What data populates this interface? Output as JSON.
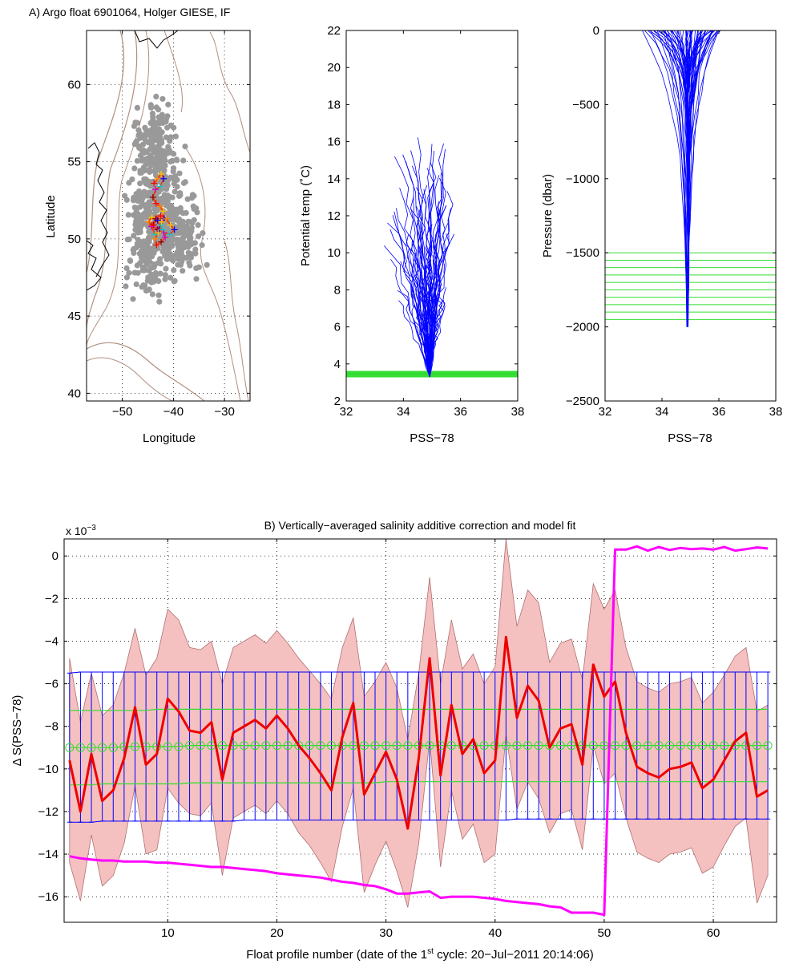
{
  "panel_a_title": "A) Argo float 6901064, Holger GIESE, IF",
  "panel_b_title": "B) Vertically−averaged salinity  additive correction and model fit",
  "colors": {
    "profiles": "#0000ff",
    "green": "#33dd33",
    "red": "#ee0000",
    "magenta": "#ff00ff",
    "shade": "#f5c0c0",
    "gray_points": "#999999",
    "bathymetry": "#b09080"
  },
  "chart_data": [
    {
      "type": "scatter",
      "subtitle": "map",
      "xlabel": "Longitude",
      "ylabel": "Latitude",
      "xlim": [
        -57,
        -25
      ],
      "ylim": [
        39.5,
        63.5
      ],
      "xticks": [
        -50,
        -40,
        -30
      ],
      "yticks": [
        40,
        45,
        50,
        55,
        60
      ],
      "grid": true,
      "float_track": {
        "lon": [
          -43.8,
          -43.1,
          -42.4,
          -41.9,
          -42.6,
          -43.5,
          -44.0,
          -43.4,
          -42.6,
          -42.0,
          -41.8,
          -42.4,
          -43.2,
          -43.9,
          -43.3,
          -42.6,
          -42.3,
          -42.8,
          -43.6,
          -44.3,
          -43.5,
          -42.5,
          -41.4,
          -40.6,
          -39.8,
          -40.7,
          -41.9,
          -43.1,
          -44.2,
          -44.9,
          -44.2,
          -43.1,
          -42.2,
          -41.6,
          -42.4,
          -43.3,
          -43.6,
          -43.0
        ],
        "lat": [
          53.6,
          53.9,
          54.2,
          53.9,
          53.4,
          53.2,
          52.7,
          52.3,
          52.1,
          51.8,
          51.3,
          50.9,
          50.6,
          50.9,
          51.3,
          51.5,
          51.1,
          50.6,
          50.3,
          50.8,
          51.3,
          51.5,
          51.3,
          50.9,
          50.6,
          50.3,
          50.4,
          50.6,
          50.9,
          51.1,
          51.4,
          51.2,
          50.6,
          50.1,
          49.8,
          49.6,
          50.0,
          50.4
        ]
      }
    },
    {
      "type": "line",
      "subtitle": "theta-S",
      "xlabel": "PSS−78",
      "ylabel": "Potential temp (˚C)",
      "xlim": [
        32,
        38
      ],
      "ylim": [
        2,
        22
      ],
      "xticks": [
        32,
        34,
        36,
        38
      ],
      "yticks": [
        2,
        4,
        6,
        8,
        10,
        12,
        14,
        16,
        18,
        20,
        22
      ],
      "theta_levels_range": [
        3.3,
        3.6
      ]
    },
    {
      "type": "line",
      "subtitle": "pressure-S",
      "xlabel": "PSS−78",
      "ylabel": "Pressure (dbar)",
      "xlim": [
        32,
        38
      ],
      "ylim": [
        -2500,
        0
      ],
      "xticks": [
        32,
        34,
        36,
        38
      ],
      "yticks": [
        0,
        -500,
        -1000,
        -1500,
        -2000,
        -2500
      ],
      "pressure_levels": [
        -1500,
        -1550,
        -1600,
        -1650,
        -1700,
        -1750,
        -1800,
        -1850,
        -1900,
        -1950
      ]
    },
    {
      "type": "line",
      "subtitle": "correction",
      "xlabel": "Float profile number (date of the 1st cycle: 20−Jul−2011 20:14:06)",
      "xlabel_parts": [
        "Float profile number (date of the 1",
        "st",
        " cycle: 20−Jul−2011 20:14:06)"
      ],
      "ylabel": "Δ S(PSS−78)",
      "exponent_label": "x 10",
      "exponent": "−3",
      "xlim": [
        0.5,
        65.8
      ],
      "ylim": [
        -17.2,
        0.8
      ],
      "xticks": [
        10,
        20,
        30,
        40,
        50,
        60
      ],
      "yticks": [
        0,
        -2,
        -4,
        -6,
        -8,
        -10,
        -12,
        -14,
        -16
      ],
      "ytick_labels": [
        "0",
        "−2",
        "−4",
        "−6",
        "−8",
        "−10",
        "−12",
        "−14",
        "−16"
      ],
      "grid": true,
      "x": [
        1,
        2,
        3,
        4,
        5,
        6,
        7,
        8,
        9,
        10,
        11,
        12,
        13,
        14,
        15,
        16,
        17,
        18,
        19,
        20,
        21,
        22,
        23,
        24,
        25,
        26,
        27,
        28,
        29,
        30,
        31,
        32,
        33,
        34,
        35,
        36,
        37,
        38,
        39,
        40,
        41,
        42,
        43,
        44,
        45,
        46,
        47,
        48,
        49,
        50,
        51,
        52,
        53,
        54,
        55,
        56,
        57,
        58,
        59,
        60,
        61,
        62,
        63,
        64,
        65
      ],
      "series": [
        {
          "values": [
            -9.6,
            -12.0,
            -9.3,
            -11.5,
            -11.0,
            -9.5,
            -7.1,
            -9.8,
            -9.3,
            -6.7,
            -7.3,
            -8.2,
            -8.3,
            -7.8,
            -10.5,
            -8.3,
            -8.0,
            -7.7,
            -8.1,
            -7.5,
            -8.1,
            -8.9,
            -9.5,
            -10.2,
            -11.0,
            -8.5,
            -6.9,
            -11.2,
            -10.2,
            -9.2,
            -10.5,
            -12.8,
            -9.5,
            -4.8,
            -10.3,
            -7.0,
            -9.3,
            -8.6,
            -10.2,
            -9.6,
            -3.8,
            -7.6,
            -6.1,
            -6.8,
            -9.0,
            -8.1,
            -7.9,
            -9.8,
            -5.1,
            -6.6,
            -5.9,
            -8.3,
            -9.9,
            -10.2,
            -10.4,
            -10.0,
            -9.9,
            -9.7,
            -10.9,
            -10.5,
            -9.6,
            -8.7,
            -8.3,
            -11.3,
            -11.0
          ]
        },
        {
          "values": [
            -4.8,
            -7.8,
            -5.5,
            -7.5,
            -7.0,
            -5.5,
            -3.4,
            -5.6,
            -4.8,
            -2.5,
            -3.0,
            -4.3,
            -4.4,
            -4.0,
            -6.0,
            -4.3,
            -4.0,
            -3.7,
            -4.1,
            -3.5,
            -4.1,
            -4.8,
            -5.4,
            -6.0,
            -6.7,
            -4.3,
            -2.9,
            -6.6,
            -5.9,
            -5.0,
            -6.2,
            -8.6,
            -5.5,
            -1.0,
            -6.0,
            -3.0,
            -5.3,
            -4.6,
            -6.0,
            -5.2,
            0.8,
            -3.3,
            -1.6,
            -2.2,
            -5.0,
            -4.1,
            -3.9,
            -5.8,
            -1.3,
            -2.5,
            -1.6,
            -4.3,
            -5.9,
            -6.2,
            -6.4,
            -6.0,
            -5.9,
            -5.7,
            -6.9,
            -6.4,
            -5.6,
            -4.7,
            -4.3,
            -7.3,
            -7.0
          ]
        },
        {
          "values": [
            -14.4,
            -16.2,
            -13.1,
            -15.5,
            -15.0,
            -13.5,
            -10.8,
            -14.0,
            -13.8,
            -10.9,
            -11.6,
            -12.1,
            -12.2,
            -11.6,
            -15.0,
            -12.3,
            -12.0,
            -11.7,
            -12.1,
            -11.5,
            -12.1,
            -13.0,
            -13.6,
            -14.4,
            -15.3,
            -12.7,
            -10.9,
            -15.8,
            -14.5,
            -13.4,
            -14.8,
            -16.5,
            -13.5,
            -8.6,
            -14.6,
            -11.0,
            -13.3,
            -12.6,
            -14.4,
            -14.0,
            -8.4,
            -11.9,
            -10.6,
            -11.4,
            -13.0,
            -12.1,
            -11.9,
            -13.8,
            -8.9,
            -10.7,
            -10.2,
            -12.3,
            -13.9,
            -14.2,
            -14.4,
            -14.0,
            -13.9,
            -13.7,
            -14.9,
            -14.6,
            -13.6,
            -12.7,
            -12.3,
            -16.3,
            -15.0
          ]
        },
        {
          "values": [
            -14.1,
            -14.2,
            -14.25,
            -14.3,
            -14.3,
            -14.35,
            -14.35,
            -14.35,
            -14.4,
            -14.4,
            -14.45,
            -14.5,
            -14.55,
            -14.6,
            -14.6,
            -14.65,
            -14.7,
            -14.75,
            -14.8,
            -14.9,
            -14.95,
            -15.0,
            -15.05,
            -15.1,
            -15.2,
            -15.3,
            -15.35,
            -15.45,
            -15.5,
            -15.65,
            -15.85,
            -15.85,
            -15.8,
            -15.75,
            -16.05,
            -16.0,
            -16.0,
            -16.0,
            -16.05,
            -16.1,
            -16.2,
            -16.25,
            -16.3,
            -16.35,
            -16.45,
            -16.5,
            -16.75,
            -16.75,
            -16.75,
            -16.85,
            0.3,
            0.3,
            0.45,
            0.25,
            0.42,
            0.28,
            0.38,
            0.32,
            0.35,
            0.3,
            0.42,
            0.25,
            0.32,
            0.4,
            0.35
          ]
        },
        {
          "values": [
            -5.5,
            -5.45,
            -5.45,
            -5.45,
            -5.45,
            -5.45,
            -5.45,
            -5.45,
            -5.45,
            -5.45,
            -5.45,
            -5.45,
            -5.45,
            -5.45,
            -5.45,
            -5.45,
            -5.45,
            -5.45,
            -5.45,
            -5.45,
            -5.45,
            -5.45,
            -5.45,
            -5.45,
            -5.45,
            -5.45,
            -5.45,
            -5.45,
            -5.45,
            -5.45,
            -5.45,
            -5.45,
            -5.45,
            -5.45,
            -5.45,
            -5.45,
            -5.45,
            -5.45,
            -5.45,
            -5.45,
            -5.45,
            -5.45,
            -5.45,
            -5.45,
            -5.45,
            -5.45,
            -5.45,
            -5.45,
            -5.45,
            -5.45,
            -5.45,
            -5.45,
            -5.45,
            -5.45,
            -5.45,
            -5.45,
            -5.45,
            -5.45,
            -5.45,
            -5.45,
            -5.45,
            -5.45,
            -5.45,
            -5.45,
            -5.45
          ]
        },
        {
          "values": [
            -12.5,
            -12.5,
            -12.5,
            -12.45,
            -12.45,
            -12.45,
            -12.45,
            -12.45,
            -12.45,
            -12.45,
            -12.45,
            -12.45,
            -12.45,
            -12.45,
            -12.45,
            -12.45,
            -12.4,
            -12.4,
            -12.4,
            -12.4,
            -12.4,
            -12.4,
            -12.4,
            -12.4,
            -12.4,
            -12.4,
            -12.4,
            -12.4,
            -12.4,
            -12.4,
            -12.4,
            -12.4,
            -12.4,
            -12.4,
            -12.4,
            -12.4,
            -12.4,
            -12.4,
            -12.4,
            -12.4,
            -12.4,
            -12.35,
            -12.35,
            -12.35,
            -12.35,
            -12.35,
            -12.35,
            -12.35,
            -12.35,
            -12.35,
            -12.35,
            -12.35,
            -12.35,
            -12.35,
            -12.35,
            -12.35,
            -12.35,
            -12.35,
            -12.35,
            -12.35,
            -12.35,
            -12.35,
            -12.35,
            -12.35,
            -12.35
          ]
        },
        {
          "values": [
            -7.25,
            -7.25,
            -7.25,
            -7.25,
            -7.25,
            -7.25,
            -7.25,
            -7.25,
            -7.2,
            -7.2,
            -7.2,
            -7.2,
            -7.2,
            -7.2,
            -7.2,
            -7.2,
            -7.2,
            -7.2,
            -7.2,
            -7.2,
            -7.2,
            -7.2,
            -7.2,
            -7.2,
            -7.2,
            -7.2,
            -7.2,
            -7.2,
            -7.2,
            -7.2,
            -7.2,
            -7.2,
            -7.2,
            -7.2,
            -7.2,
            -7.2,
            -7.2,
            -7.2,
            -7.2,
            -7.2,
            -7.2,
            -7.2,
            -7.2,
            -7.2,
            -7.2,
            -7.2,
            -7.2,
            -7.2,
            -7.2,
            -7.2,
            -7.2,
            -7.2,
            -7.2,
            -7.2,
            -7.2,
            -7.2,
            -7.2,
            -7.2,
            -7.2,
            -7.2,
            -7.2,
            -7.2,
            -7.2,
            -7.2,
            -7.2
          ]
        },
        {
          "values": [
            -9.0,
            -9.0,
            -9.0,
            -9.0,
            -9.0,
            -8.95,
            -8.95,
            -8.95,
            -8.95,
            -8.95,
            -8.95,
            -8.9,
            -8.9,
            -8.9,
            -8.9,
            -8.9,
            -8.9,
            -8.9,
            -8.9,
            -8.9,
            -8.9,
            -8.9,
            -8.9,
            -8.9,
            -8.9,
            -8.9,
            -8.9,
            -8.9,
            -8.9,
            -8.9,
            -8.9,
            -8.9,
            -8.9,
            -8.9,
            -8.9,
            -8.9,
            -8.9,
            -8.9,
            -8.9,
            -8.9,
            -8.9,
            -8.9,
            -8.9,
            -8.9,
            -8.9,
            -8.9,
            -8.9,
            -8.9,
            -8.9,
            -8.9,
            -8.9,
            -8.9,
            -8.9,
            -8.9,
            -8.9,
            -8.9,
            -8.9,
            -8.9,
            -8.9,
            -8.9,
            -8.9,
            -8.9,
            -8.9,
            -8.9,
            -8.9
          ]
        },
        {
          "values": [
            -10.75,
            -10.75,
            -10.75,
            -10.7,
            -10.7,
            -10.7,
            -10.7,
            -10.7,
            -10.7,
            -10.7,
            -10.7,
            -10.65,
            -10.65,
            -10.65,
            -10.65,
            -10.65,
            -10.65,
            -10.65,
            -10.65,
            -10.65,
            -10.65,
            -10.65,
            -10.65,
            -10.65,
            -10.65,
            -10.65,
            -10.65,
            -10.65,
            -10.65,
            -10.6,
            -10.6,
            -10.6,
            -10.6,
            -10.6,
            -10.6,
            -10.6,
            -10.6,
            -10.6,
            -10.6,
            -10.6,
            -10.6,
            -10.6,
            -10.6,
            -10.6,
            -10.6,
            -10.6,
            -10.6,
            -10.6,
            -10.6,
            -10.6,
            -10.6,
            -10.6,
            -10.6,
            -10.6,
            -10.6,
            -10.6,
            -10.6,
            -10.6,
            -10.6,
            -10.6,
            -10.6,
            -10.6,
            -10.6,
            -10.6,
            -10.6
          ]
        }
      ]
    }
  ]
}
